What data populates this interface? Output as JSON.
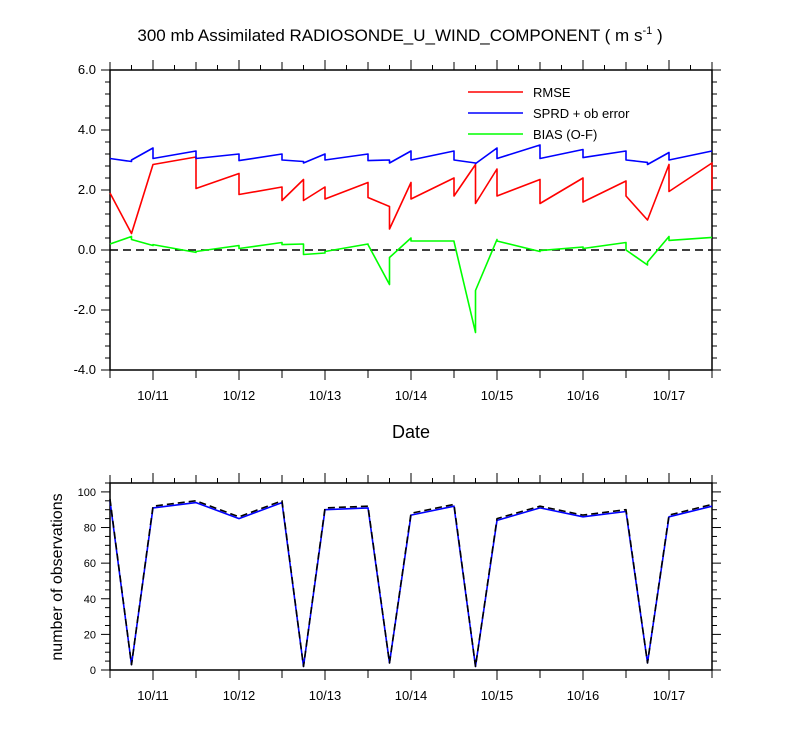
{
  "chart_data": [
    {
      "type": "line",
      "title_main": "300 mb Assimilated RADIOSONDE_U_WIND_COMPONENT ( m s",
      "title_sup": "-1",
      "title_end": " )",
      "xlabel": "Date",
      "ylabel": "",
      "xlim": [
        10.5,
        17.5
      ],
      "ylim": [
        -4.0,
        6.0
      ],
      "yticks": [
        -4.0,
        -2.0,
        0.0,
        2.0,
        4.0,
        6.0
      ],
      "yticklabels": [
        "-4.0",
        "-2.0",
        "0.0",
        "2.0",
        "4.0",
        "6.0"
      ],
      "xticks": [
        11,
        12,
        13,
        14,
        15,
        16,
        17
      ],
      "xticklabels": [
        "10/11",
        "10/12",
        "10/13",
        "10/14",
        "10/15",
        "10/16",
        "10/17"
      ],
      "reference_line": {
        "y": 0.0,
        "style": "dashed",
        "color": "#000000"
      },
      "legend_position": "top-right",
      "series": [
        {
          "name": "RMSE",
          "color": "#ff0000",
          "x": [
            10.5,
            10.75,
            11.0,
            11.5,
            11.5,
            12.0,
            12.0,
            12.5,
            12.5,
            12.75,
            12.75,
            13.0,
            13.0,
            13.5,
            13.5,
            13.75,
            13.75,
            14.0,
            14.0,
            14.5,
            14.5,
            14.75,
            14.75,
            15.0,
            15.0,
            15.5,
            15.5,
            16.0,
            16.0,
            16.5,
            16.5,
            16.75,
            17.0,
            17.0,
            17.5,
            17.5
          ],
          "y": [
            1.9,
            0.55,
            2.85,
            3.1,
            2.05,
            2.55,
            1.85,
            2.1,
            1.65,
            2.35,
            1.65,
            2.1,
            1.7,
            2.25,
            1.75,
            1.45,
            0.7,
            2.25,
            1.7,
            2.4,
            1.8,
            2.85,
            1.55,
            2.7,
            1.8,
            2.35,
            1.55,
            2.4,
            1.6,
            2.3,
            1.8,
            1.0,
            2.85,
            1.95,
            2.9,
            2.0
          ]
        },
        {
          "name": "SPRD + ob error",
          "color": "#0000ff",
          "x": [
            10.5,
            10.75,
            10.75,
            11.0,
            11.0,
            11.5,
            11.5,
            12.0,
            12.0,
            12.5,
            12.5,
            12.75,
            12.75,
            13.0,
            13.0,
            13.5,
            13.5,
            13.75,
            13.75,
            14.0,
            14.0,
            14.5,
            14.5,
            14.75,
            14.75,
            15.0,
            15.0,
            15.5,
            15.5,
            16.0,
            16.0,
            16.5,
            16.5,
            16.75,
            16.75,
            17.0,
            17.0,
            17.5
          ],
          "y": [
            3.05,
            2.95,
            3.0,
            3.4,
            3.05,
            3.3,
            3.05,
            3.2,
            2.98,
            3.2,
            3.0,
            2.95,
            2.9,
            3.2,
            3.0,
            3.2,
            2.98,
            3.0,
            2.9,
            3.3,
            3.0,
            3.3,
            3.0,
            2.9,
            2.88,
            3.4,
            3.05,
            3.5,
            3.05,
            3.35,
            3.08,
            3.3,
            3.0,
            2.92,
            2.85,
            3.25,
            3.0,
            3.3
          ]
        },
        {
          "name": "BIAS (O-F)",
          "color": "#00ff00",
          "x": [
            10.5,
            10.75,
            10.75,
            11.0,
            11.0,
            11.5,
            11.5,
            12.0,
            12.0,
            12.5,
            12.5,
            12.75,
            12.75,
            13.0,
            13.0,
            13.5,
            13.5,
            13.75,
            13.75,
            14.0,
            14.0,
            14.5,
            14.5,
            14.75,
            14.75,
            15.0,
            15.0,
            15.5,
            15.5,
            16.0,
            16.0,
            16.5,
            16.5,
            16.75,
            16.75,
            17.0,
            17.0,
            17.5
          ],
          "y": [
            0.2,
            0.45,
            0.35,
            0.15,
            0.18,
            -0.08,
            -0.05,
            0.15,
            0.05,
            0.25,
            0.18,
            0.2,
            -0.15,
            -0.1,
            -0.05,
            0.2,
            0.18,
            -1.15,
            -0.25,
            0.4,
            0.3,
            0.3,
            0.28,
            -2.75,
            -1.35,
            0.35,
            0.3,
            -0.05,
            -0.02,
            0.1,
            0.05,
            0.25,
            0.0,
            -0.5,
            -0.4,
            0.45,
            0.32,
            0.42
          ]
        }
      ]
    },
    {
      "type": "line",
      "xlabel": "",
      "ylabel": "number of observations",
      "xlim": [
        10.5,
        17.5
      ],
      "ylim": [
        0,
        105
      ],
      "yticks": [
        0,
        20,
        40,
        60,
        80,
        100
      ],
      "yticklabels": [
        "0",
        "20",
        "40",
        "60",
        "80",
        "100"
      ],
      "xticks": [
        11,
        12,
        13,
        14,
        15,
        16,
        17
      ],
      "xticklabels": [
        "10/11",
        "10/12",
        "10/13",
        "10/14",
        "10/15",
        "10/16",
        "10/17"
      ],
      "series": [
        {
          "color": "#0000ff",
          "style": "solid",
          "x": [
            10.5,
            10.75,
            11.0,
            11.5,
            12.0,
            12.5,
            12.75,
            13.0,
            13.5,
            13.75,
            14.0,
            14.5,
            14.75,
            15.0,
            15.5,
            16.0,
            16.5,
            16.75,
            17.0,
            17.5
          ],
          "y": [
            95,
            3,
            91,
            94,
            85,
            94,
            2,
            90,
            91,
            4,
            87,
            92,
            2,
            84,
            91,
            86,
            89,
            4,
            86,
            92
          ]
        },
        {
          "color": "#000000",
          "style": "dashed",
          "x": [
            10.5,
            10.75,
            11.0,
            11.5,
            12.0,
            12.5,
            12.75,
            13.0,
            13.5,
            13.75,
            14.0,
            14.5,
            14.75,
            15.0,
            15.5,
            16.0,
            16.5,
            16.75,
            17.0,
            17.5
          ],
          "y": [
            96,
            3,
            92,
            95,
            86,
            95,
            2,
            91,
            92,
            4,
            88,
            93,
            2,
            85,
            92,
            87,
            90,
            4,
            87,
            93
          ]
        }
      ]
    }
  ]
}
